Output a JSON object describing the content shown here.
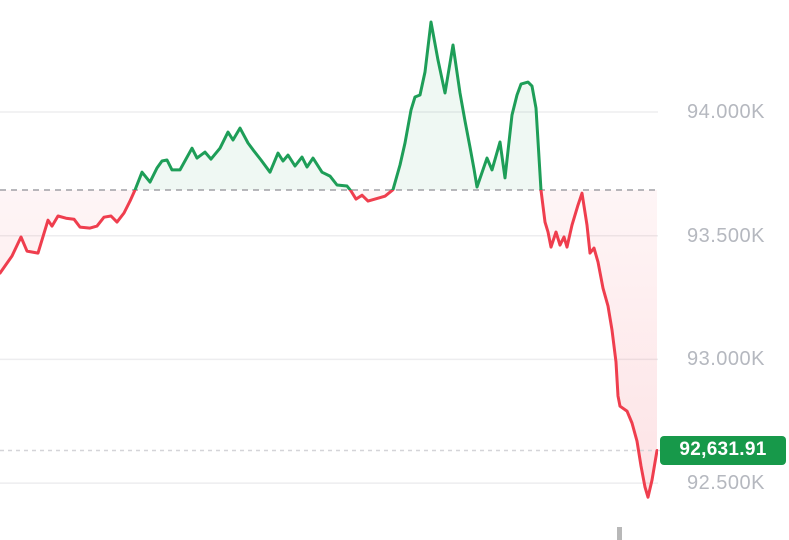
{
  "chart_data": {
    "type": "area",
    "subtype": "baseline-line",
    "title": "",
    "x_axis": {
      "labels_visible": false,
      "x_unit": "px"
    },
    "y_axis": {
      "side": "right",
      "ylim": [
        92270,
        94453
      ],
      "ticks": [
        {
          "label": "94.000K",
          "value": 94000
        },
        {
          "label": "93.500K",
          "value": 93500
        },
        {
          "label": "93.000K",
          "value": 93000
        },
        {
          "label": "92.500K",
          "value": 92500
        }
      ]
    },
    "grid": "horizontal",
    "baseline_price": 93685,
    "current_price": 92631.91,
    "current_price_label": "92,631.91",
    "series": [
      {
        "name": "price",
        "points": [
          [
            0,
            93349
          ],
          [
            12,
            93418
          ],
          [
            21,
            93495
          ],
          [
            27,
            93438
          ],
          [
            38,
            93430
          ],
          [
            48,
            93563
          ],
          [
            52,
            93539
          ],
          [
            58,
            93580
          ],
          [
            66,
            93571
          ],
          [
            74,
            93567
          ],
          [
            80,
            93535
          ],
          [
            90,
            93531
          ],
          [
            97,
            93539
          ],
          [
            104,
            93575
          ],
          [
            111,
            93580
          ],
          [
            117,
            93555
          ],
          [
            124,
            93592
          ],
          [
            130,
            93640
          ],
          [
            135,
            93685
          ],
          [
            142,
            93757
          ],
          [
            150,
            93717
          ],
          [
            157,
            93774
          ],
          [
            162,
            93802
          ],
          [
            167,
            93806
          ],
          [
            172,
            93766
          ],
          [
            180,
            93766
          ],
          [
            192,
            93854
          ],
          [
            197,
            93814
          ],
          [
            205,
            93838
          ],
          [
            211,
            93810
          ],
          [
            220,
            93854
          ],
          [
            228,
            93919
          ],
          [
            233,
            93887
          ],
          [
            240,
            93935
          ],
          [
            248,
            93875
          ],
          [
            254,
            93842
          ],
          [
            261,
            93806
          ],
          [
            270,
            93757
          ],
          [
            278,
            93834
          ],
          [
            283,
            93802
          ],
          [
            288,
            93826
          ],
          [
            295,
            93782
          ],
          [
            302,
            93818
          ],
          [
            307,
            93778
          ],
          [
            313,
            93814
          ],
          [
            322,
            93757
          ],
          [
            330,
            93741
          ],
          [
            337,
            93705
          ],
          [
            347,
            93701
          ],
          [
            351,
            93681
          ],
          [
            356,
            93648
          ],
          [
            362,
            93664
          ],
          [
            368,
            93640
          ],
          [
            375,
            93648
          ],
          [
            385,
            93660
          ],
          [
            393,
            93686
          ],
          [
            400,
            93786
          ],
          [
            405,
            93875
          ],
          [
            411,
            94008
          ],
          [
            415,
            94061
          ],
          [
            420,
            94069
          ],
          [
            425,
            94162
          ],
          [
            431,
            94364
          ],
          [
            438,
            94210
          ],
          [
            445,
            94077
          ],
          [
            450,
            94198
          ],
          [
            453,
            94271
          ],
          [
            460,
            94077
          ],
          [
            465,
            93964
          ],
          [
            470,
            93858
          ],
          [
            474,
            93770
          ],
          [
            477,
            93697
          ],
          [
            487,
            93814
          ],
          [
            492,
            93766
          ],
          [
            500,
            93879
          ],
          [
            505,
            93734
          ],
          [
            512,
            93988
          ],
          [
            517,
            94069
          ],
          [
            521,
            94113
          ],
          [
            528,
            94121
          ],
          [
            532,
            94105
          ],
          [
            536,
            94016
          ],
          [
            541,
            93684
          ],
          [
            545,
            93555
          ],
          [
            548,
            93515
          ],
          [
            551,
            93454
          ],
          [
            556,
            93515
          ],
          [
            560,
            93462
          ],
          [
            564,
            93495
          ],
          [
            567,
            93454
          ],
          [
            572,
            93543
          ],
          [
            578,
            93624
          ],
          [
            582,
            93672
          ],
          [
            587,
            93543
          ],
          [
            590,
            93430
          ],
          [
            594,
            93450
          ],
          [
            598,
            93394
          ],
          [
            603,
            93288
          ],
          [
            608,
            93216
          ],
          [
            612,
            93119
          ],
          [
            616,
            92989
          ],
          [
            618,
            92852
          ],
          [
            620,
            92811
          ],
          [
            627,
            92791
          ],
          [
            632,
            92743
          ],
          [
            637,
            92670
          ],
          [
            641,
            92569
          ],
          [
            645,
            92484
          ],
          [
            648,
            92443
          ],
          [
            652,
            92512
          ],
          [
            657,
            92631.91
          ]
        ]
      }
    ],
    "colors": {
      "background": "#ffffff",
      "up": "#1e9e58",
      "down": "#ef3e4e",
      "up_fill": "rgba(30,158,88,0.07)",
      "down_fill_light": "rgba(239,62,78,0.05)",
      "down_fill_deep": "rgba(239,62,78,0.15)",
      "grid": "#ededef",
      "baseline_dash": "#a0a0a5",
      "price_dash": "#d4d4d8",
      "axis_label": "#b5b8bf",
      "badge_bg": "#17994a",
      "badge_text": "#ffffff"
    }
  }
}
